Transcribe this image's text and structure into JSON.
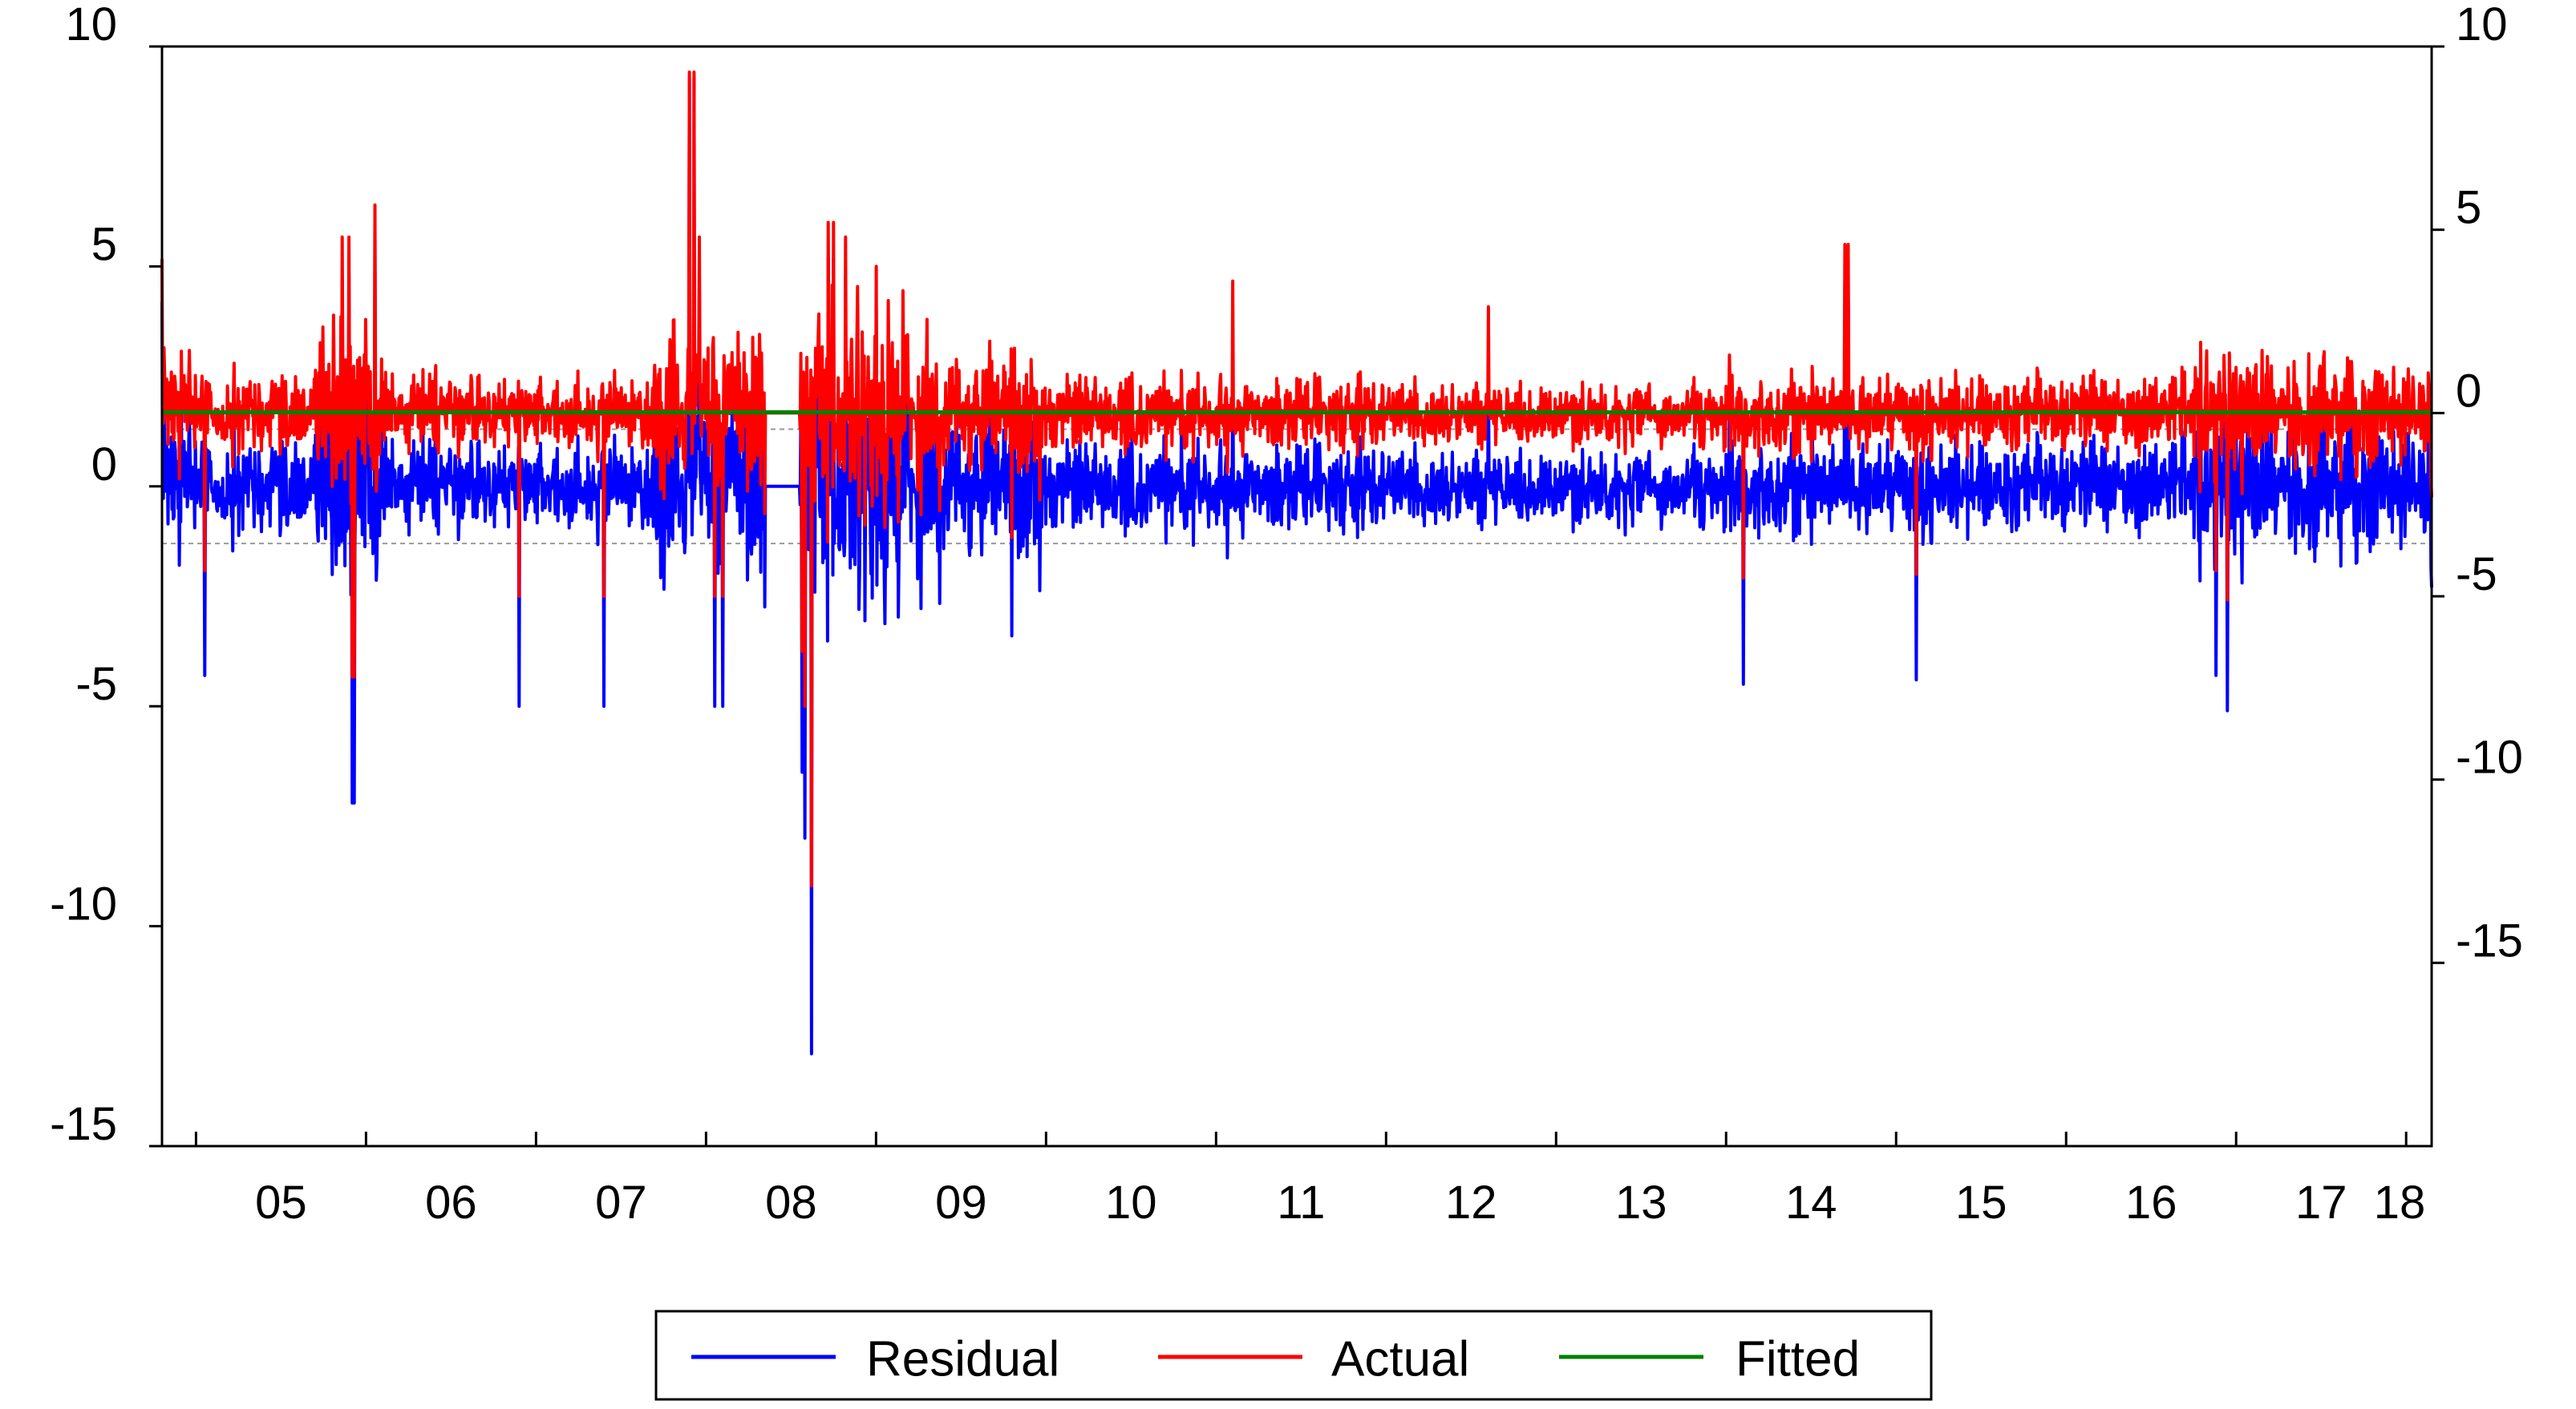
{
  "chart_data": {
    "type": "line",
    "title": "",
    "xlabel": "",
    "left_ylabel": "",
    "right_ylabel": "",
    "x_ticks": [
      "05",
      "06",
      "07",
      "08",
      "09",
      "10",
      "11",
      "12",
      "13",
      "14",
      "15",
      "16",
      "17",
      "18"
    ],
    "x_range": [
      2004.8,
      2018.15
    ],
    "left_axis": {
      "range": [
        -15,
        10
      ],
      "ticks": [
        "10",
        "5",
        "0",
        "-5",
        "-10",
        "-15"
      ]
    },
    "right_axis": {
      "range": [
        -20,
        10
      ],
      "ticks": [
        "10",
        "5",
        "0",
        "-5",
        "-10",
        "-15"
      ]
    },
    "residual_band": [
      -1.3,
      1.3
    ],
    "grid": false,
    "legend_position": "bottom-center",
    "series": [
      {
        "name": "Residual",
        "axis": "left",
        "color": "#0000ff",
        "approx_points": [
          [
            2004.8,
            4.2
          ],
          [
            2005.9,
            4.8
          ],
          [
            2005.93,
            -7.2
          ],
          [
            2007.9,
            9.3
          ],
          [
            2008.1,
            -5.0
          ],
          [
            2008.35,
            0.0
          ],
          [
            2008.55,
            0.0
          ],
          [
            2008.58,
            -8.0
          ],
          [
            2008.62,
            -12.9
          ],
          [
            2008.75,
            5.2
          ],
          [
            2009.0,
            4.0
          ],
          [
            2011.1,
            3.6
          ],
          [
            2014.1,
            -4.5
          ],
          [
            2014.7,
            4.6
          ],
          [
            2016.95,
            -5.1
          ],
          [
            2018.15,
            -2.3
          ]
        ]
      },
      {
        "name": "Actual",
        "axis": "right",
        "color": "#ff0000",
        "approx_points": [
          [
            2004.8,
            4.2
          ],
          [
            2005.9,
            4.8
          ],
          [
            2005.93,
            -7.2
          ],
          [
            2007.9,
            9.3
          ],
          [
            2008.1,
            -5.0
          ],
          [
            2008.35,
            0.0
          ],
          [
            2008.55,
            0.0
          ],
          [
            2008.58,
            -8.0
          ],
          [
            2008.62,
            -12.9
          ],
          [
            2008.75,
            5.2
          ],
          [
            2009.0,
            4.0
          ],
          [
            2011.1,
            3.6
          ],
          [
            2014.1,
            -4.5
          ],
          [
            2014.7,
            4.6
          ],
          [
            2016.95,
            -5.1
          ],
          [
            2018.15,
            -2.3
          ]
        ]
      },
      {
        "name": "Fitted",
        "axis": "right",
        "color": "#008000",
        "approx_points": [
          [
            2004.8,
            0.02
          ],
          [
            2018.15,
            0.02
          ]
        ]
      }
    ],
    "colors": {
      "residual": "#0000ff",
      "actual": "#ff0000",
      "fitted": "#008000",
      "frame": "#000000",
      "band": "#999999"
    }
  }
}
